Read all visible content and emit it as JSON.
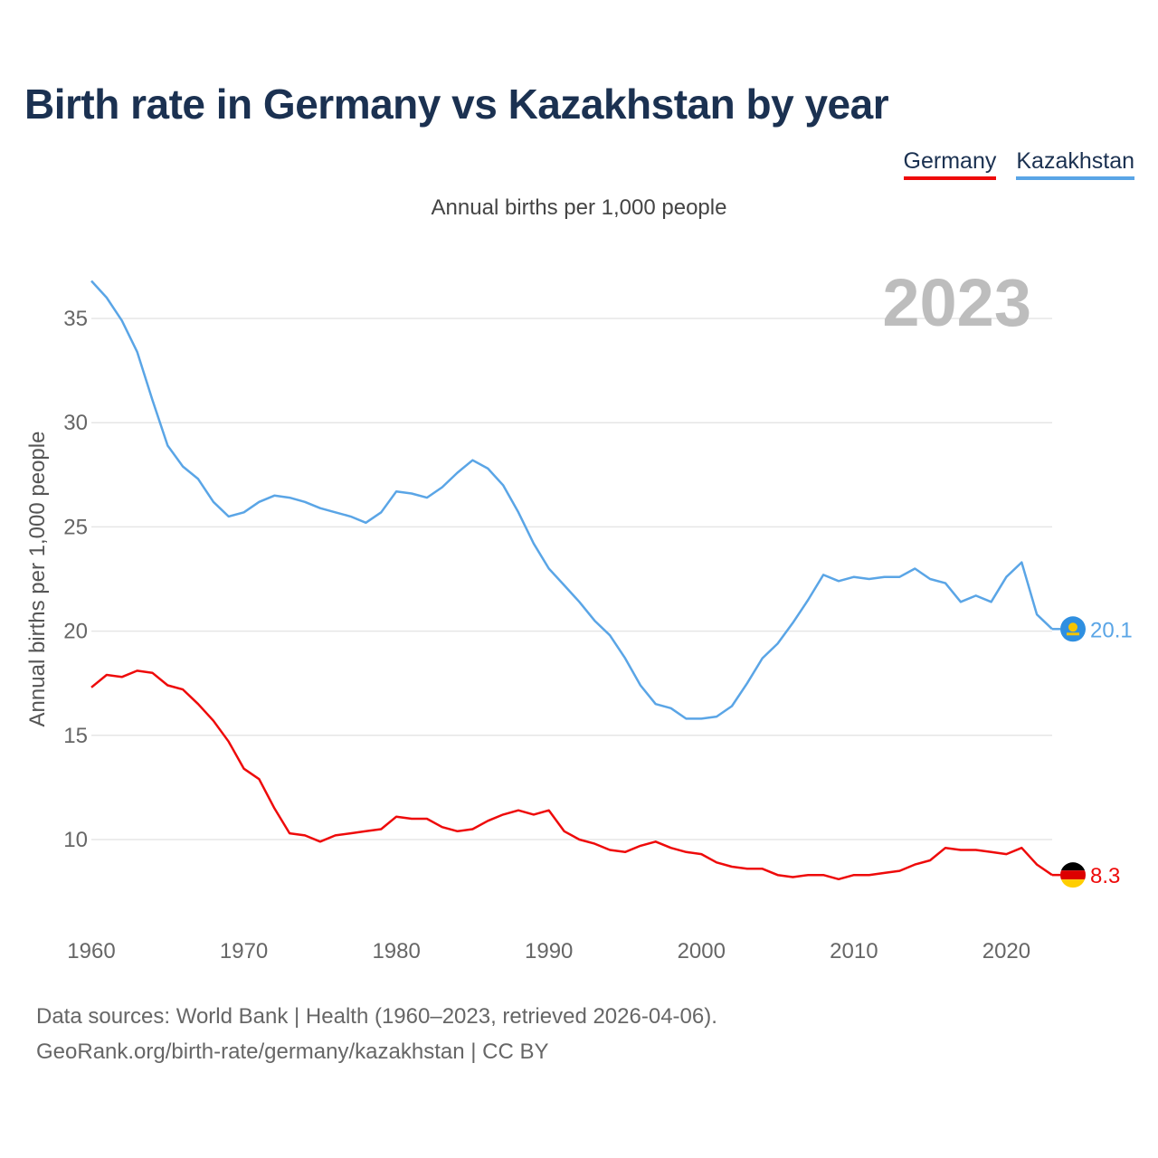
{
  "title": "Birth rate in Germany vs Kazakhstan by year",
  "subtitle": "Annual births per 1,000 people",
  "legend": {
    "germany": "Germany",
    "kazakhstan": "Kazakhstan"
  },
  "year_label": "2023",
  "colors": {
    "germany": "#ee0a0a",
    "kazakhstan": "#5aa5e6",
    "title": "#1b3151"
  },
  "footer": {
    "line1": "Data sources: World Bank | Health (1960–2023, retrieved 2026-04-06).",
    "line2": "GeoRank.org/birth-rate/germany/kazakhstan | CC BY"
  },
  "chart_data": {
    "type": "line",
    "title": "Birth rate in Germany vs Kazakhstan by year",
    "xlabel": "",
    "ylabel": "Annual births per 1,000 people",
    "xlim": [
      1960,
      2023
    ],
    "ylim": [
      7,
      37
    ],
    "x_ticks": [
      1960,
      1970,
      1980,
      1990,
      2000,
      2010,
      2020
    ],
    "y_ticks": [
      10,
      15,
      20,
      25,
      30,
      35
    ],
    "grid": true,
    "legend_position": "top-right",
    "x": [
      1960,
      1961,
      1962,
      1963,
      1964,
      1965,
      1966,
      1967,
      1968,
      1969,
      1970,
      1971,
      1972,
      1973,
      1974,
      1975,
      1976,
      1977,
      1978,
      1979,
      1980,
      1981,
      1982,
      1983,
      1984,
      1985,
      1986,
      1987,
      1988,
      1989,
      1990,
      1991,
      1992,
      1993,
      1994,
      1995,
      1996,
      1997,
      1998,
      1999,
      2000,
      2001,
      2002,
      2003,
      2004,
      2005,
      2006,
      2007,
      2008,
      2009,
      2010,
      2011,
      2012,
      2013,
      2014,
      2015,
      2016,
      2017,
      2018,
      2019,
      2020,
      2021,
      2022,
      2023
    ],
    "series": [
      {
        "name": "Germany",
        "end_label": "8.3",
        "values": [
          17.3,
          17.9,
          17.8,
          18.1,
          18.0,
          17.4,
          17.2,
          16.5,
          15.7,
          14.7,
          13.4,
          12.9,
          11.5,
          10.3,
          10.2,
          9.9,
          10.2,
          10.3,
          10.4,
          10.5,
          11.1,
          11.0,
          11.0,
          10.6,
          10.4,
          10.5,
          10.9,
          11.2,
          11.4,
          11.2,
          11.4,
          10.4,
          10.0,
          9.8,
          9.5,
          9.4,
          9.7,
          9.9,
          9.6,
          9.4,
          9.3,
          8.9,
          8.7,
          8.6,
          8.6,
          8.3,
          8.2,
          8.3,
          8.3,
          8.1,
          8.3,
          8.3,
          8.4,
          8.5,
          8.8,
          9.0,
          9.6,
          9.5,
          9.5,
          9.4,
          9.3,
          9.6,
          8.8,
          8.3
        ]
      },
      {
        "name": "Kazakhstan",
        "end_label": "20.1",
        "values": [
          36.8,
          36.0,
          34.9,
          33.4,
          31.1,
          28.9,
          27.9,
          27.3,
          26.2,
          25.5,
          25.7,
          26.2,
          26.5,
          26.4,
          26.2,
          25.9,
          25.7,
          25.5,
          25.2,
          25.7,
          26.7,
          26.6,
          26.4,
          26.9,
          27.6,
          28.2,
          27.8,
          27.0,
          25.7,
          24.2,
          23.0,
          22.2,
          21.4,
          20.5,
          19.8,
          18.7,
          17.4,
          16.5,
          16.3,
          15.8,
          15.8,
          15.9,
          16.4,
          17.5,
          18.7,
          19.4,
          20.4,
          21.5,
          22.7,
          22.4,
          22.6,
          22.5,
          22.6,
          22.6,
          23.0,
          22.5,
          22.3,
          21.4,
          21.7,
          21.4,
          22.6,
          23.3,
          20.8,
          20.1
        ]
      }
    ]
  }
}
